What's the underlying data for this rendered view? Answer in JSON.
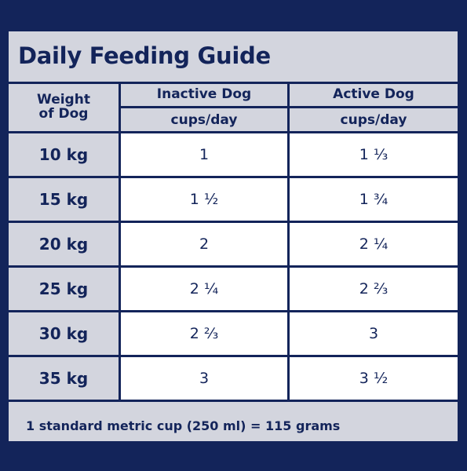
{
  "title": "Daily Feeding Guide",
  "header": {
    "weight_line1": "Weight",
    "weight_line2": "of Dog",
    "inactive": "Inactive Dog",
    "active": "Active Dog",
    "inactive_unit": "cups/day",
    "active_unit": "cups/day"
  },
  "rows": [
    {
      "weight": "10 kg",
      "inactive": "1",
      "active": "1 ⅓"
    },
    {
      "weight": "15 kg",
      "inactive": "1 ½",
      "active": "1 ¾"
    },
    {
      "weight": "20 kg",
      "inactive": "2",
      "active": "2 ¼"
    },
    {
      "weight": "25 kg",
      "inactive": "2 ¼",
      "active": "2 ⅔"
    },
    {
      "weight": "30 kg",
      "inactive": "2 ⅔",
      "active": "3"
    },
    {
      "weight": "35 kg",
      "inactive": "3",
      "active": "3 ½"
    }
  ],
  "footer": "1 standard metric cup (250 ml) = 115 grams",
  "colors": {
    "navy": "#13245a",
    "panel": "#d3d5de",
    "cell": "#ffffff"
  }
}
